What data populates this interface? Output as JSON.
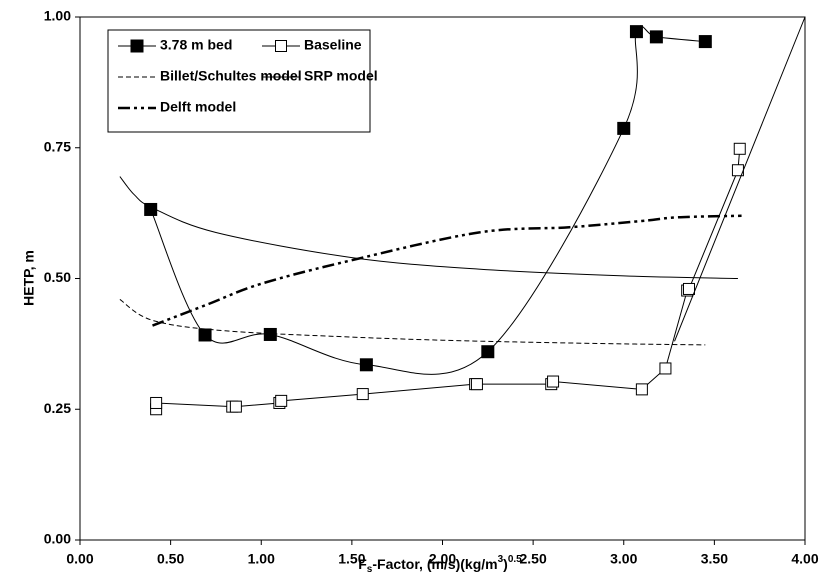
{
  "chart_data": {
    "type": "line",
    "x_label_parts": [
      "F",
      "s",
      "-Factor,  (m/s)(kg/m",
      "3",
      ")",
      "0.5"
    ],
    "y_label": "HETP,  m",
    "xlim": [
      0,
      4
    ],
    "ylim": [
      0,
      1
    ],
    "xticks": [
      {
        "value": 0,
        "label": "0.00"
      },
      {
        "value": 0.5,
        "label": "0.50"
      },
      {
        "value": 1,
        "label": "1.00"
      },
      {
        "value": 1.5,
        "label": "1.50"
      },
      {
        "value": 2,
        "label": "2.00"
      },
      {
        "value": 2.5,
        "label": "2.50"
      },
      {
        "value": 3,
        "label": "3.00"
      },
      {
        "value": 3.5,
        "label": "3.50"
      },
      {
        "value": 4,
        "label": "4.00"
      }
    ],
    "yticks": [
      {
        "value": 0,
        "label": "0.00"
      },
      {
        "value": 0.25,
        "label": "0.25"
      },
      {
        "value": 0.5,
        "label": "0.50"
      },
      {
        "value": 0.75,
        "label": "0.75"
      },
      {
        "value": 1,
        "label": "1.00"
      }
    ],
    "series": [
      {
        "name": "3.78 m  bed",
        "color": "#000",
        "marker": "filled",
        "dash": "none",
        "width": 1,
        "smooth": true,
        "x": [
          0.39,
          0.69,
          1.05,
          1.58,
          2.25,
          3.0,
          3.07,
          3.18,
          3.45
        ],
        "values": [
          0.632,
          0.392,
          0.393,
          0.335,
          0.36,
          0.787,
          0.972,
          0.962,
          0.953
        ]
      },
      {
        "name": "Baseline",
        "color": "#000",
        "marker": "open",
        "dash": "none",
        "width": 1,
        "smooth": false,
        "x": [
          0.42,
          0.42,
          0.84,
          0.86,
          1.1,
          1.11,
          1.56,
          2.18,
          2.19,
          2.6,
          2.61,
          3.1,
          3.23,
          3.35,
          3.36,
          3.63,
          3.64
        ],
        "values": [
          0.25,
          0.262,
          0.255,
          0.255,
          0.262,
          0.266,
          0.279,
          0.298,
          0.298,
          0.298,
          0.303,
          0.288,
          0.328,
          0.477,
          0.48,
          0.707,
          0.748
        ]
      },
      {
        "name": "Billet/Schultes model",
        "color": "#000",
        "marker": null,
        "dash": "5,3",
        "width": 1,
        "smooth": true,
        "x": [
          0.22,
          0.4,
          0.8,
          1.5,
          2.0,
          2.5,
          3.0,
          3.45
        ],
        "values": [
          0.46,
          0.42,
          0.4,
          0.388,
          0.382,
          0.378,
          0.375,
          0.373
        ]
      },
      {
        "name": "SRP model",
        "color": "#000",
        "marker": null,
        "dash": "none",
        "width": 1,
        "smooth": true,
        "x": [
          0.22,
          0.3,
          0.4,
          0.75,
          1.5,
          2.2,
          3.0,
          3.63
        ],
        "values": [
          0.695,
          0.66,
          0.635,
          0.588,
          0.54,
          0.518,
          0.505,
          0.5
        ]
      },
      {
        "name": "Delft model",
        "color": "#000",
        "marker": null,
        "dash": "12,4,3,4,3,4",
        "width": 2.5,
        "smooth": true,
        "x": [
          0.4,
          0.7,
          1.0,
          1.5,
          2.2,
          2.7,
          3.1,
          3.3,
          3.65
        ],
        "values": [
          0.41,
          0.45,
          0.49,
          0.535,
          0.588,
          0.598,
          0.61,
          0.617,
          0.62
        ]
      },
      {
        "color": "#000",
        "marker": null,
        "dash": "none",
        "width": 1,
        "smooth": false,
        "x": [
          3.28,
          4.0
        ],
        "values": [
          0.38,
          1.0
        ]
      }
    ]
  }
}
